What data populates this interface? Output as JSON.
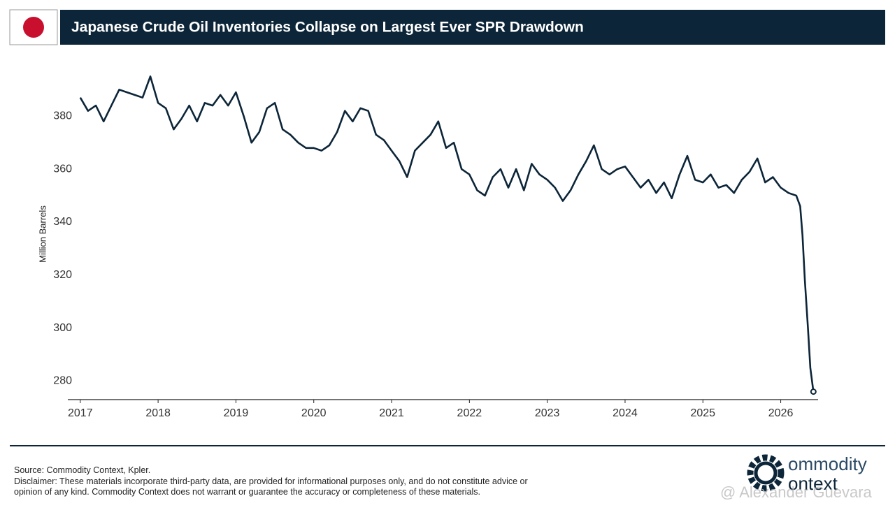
{
  "chart_data": {
    "type": "line",
    "title": "Japanese Crude Oil Inventories Collapse on Largest Ever SPR Drawdown",
    "y_label": "Million Barrels",
    "color": "#0c2538",
    "x": [
      2017.0,
      2017.1,
      2017.2,
      2017.3,
      2017.4,
      2017.5,
      2017.6,
      2017.7,
      2017.8,
      2017.9,
      2018.0,
      2018.1,
      2018.2,
      2018.3,
      2018.4,
      2018.5,
      2018.6,
      2018.7,
      2018.8,
      2018.9,
      2019.0,
      2019.1,
      2019.2,
      2019.3,
      2019.4,
      2019.5,
      2019.6,
      2019.7,
      2019.8,
      2019.9,
      2020.0,
      2020.1,
      2020.2,
      2020.3,
      2020.4,
      2020.5,
      2020.6,
      2020.7,
      2020.8,
      2020.9,
      2021.0,
      2021.1,
      2021.2,
      2021.3,
      2021.4,
      2021.5,
      2021.6,
      2021.7,
      2021.8,
      2021.9,
      2022.0,
      2022.1,
      2022.2,
      2022.3,
      2022.4,
      2022.5,
      2022.6,
      2022.7,
      2022.8,
      2022.9,
      2023.0,
      2023.1,
      2023.2,
      2023.3,
      2023.4,
      2023.5,
      2023.6,
      2023.7,
      2023.8,
      2023.9,
      2024.0,
      2024.1,
      2024.2,
      2024.3,
      2024.4,
      2024.5,
      2024.6,
      2024.7,
      2024.8,
      2024.9,
      2025.0,
      2025.1,
      2025.2,
      2025.3,
      2025.4,
      2025.5,
      2025.6,
      2025.7,
      2025.8,
      2025.9,
      2026.0,
      2026.1,
      2026.2,
      2026.25,
      2026.28,
      2026.31,
      2026.35,
      2026.38,
      2026.42
    ],
    "values": [
      387,
      382,
      384,
      378,
      384,
      390,
      389,
      388,
      387,
      395,
      385,
      383,
      375,
      379,
      384,
      378,
      385,
      384,
      388,
      384,
      389,
      380,
      370,
      374,
      383,
      385,
      375,
      373,
      370,
      368,
      368,
      367,
      369,
      374,
      382,
      378,
      383,
      382,
      373,
      371,
      367,
      363,
      357,
      367,
      370,
      373,
      378,
      368,
      370,
      360,
      358,
      352,
      350,
      357,
      360,
      353,
      360,
      352,
      362,
      358,
      356,
      353,
      348,
      352,
      358,
      363,
      369,
      360,
      358,
      360,
      361,
      357,
      353,
      356,
      351,
      355,
      349,
      358,
      365,
      356,
      355,
      358,
      353,
      354,
      351,
      356,
      359,
      364,
      355,
      357,
      353,
      351,
      350,
      346,
      335,
      318,
      300,
      285,
      276
    ],
    "xlim": [
      2016.84,
      2026.48
    ],
    "xticks": [
      2017,
      2018,
      2019,
      2020,
      2021,
      2022,
      2023,
      2024,
      2025,
      2026
    ],
    "ylim": [
      273,
      398
    ],
    "yticks": [
      280,
      300,
      320,
      340,
      360,
      380
    ],
    "grid": false
  },
  "footer": {
    "source": "Source: Commodity Context, Kpler.",
    "disclaimer": "Disclaimer: These materials incorporate third-party data, are provided for informational purposes only, and do not constitute advice or opinion of any kind. Commodity Context does not warrant or guarantee the accuracy or completeness of these materials."
  },
  "branding": {
    "logo_top": "ommodity",
    "logo_bottom": "ontext",
    "watermark": "@ Alexander Guevara"
  }
}
